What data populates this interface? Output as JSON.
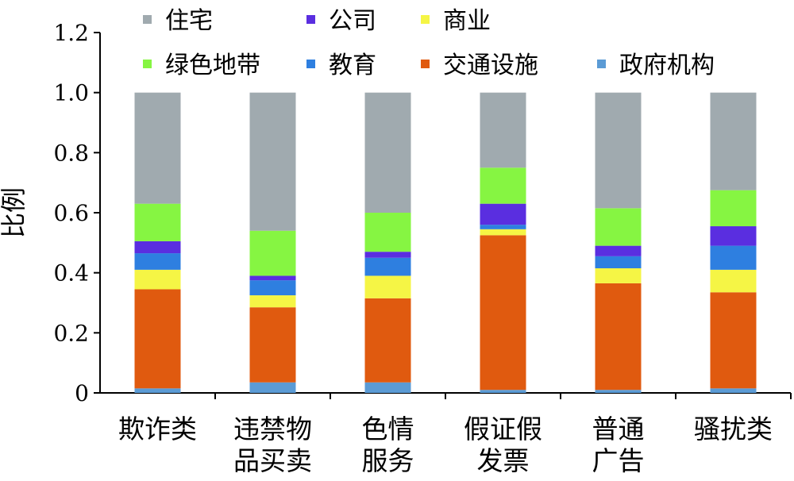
{
  "chart_data": {
    "type": "bar",
    "stacked": true,
    "categories": [
      [
        "欺诈类"
      ],
      [
        "违禁物",
        "品买卖"
      ],
      [
        "色情",
        "服务"
      ],
      [
        "假证假",
        "发票"
      ],
      [
        "普通",
        "广告"
      ],
      [
        "骚扰类"
      ]
    ],
    "series": [
      {
        "name": "政府机构",
        "color": "#5b9bd5",
        "values": [
          0.015,
          0.035,
          0.035,
          0.01,
          0.01,
          0.015
        ]
      },
      {
        "name": "交通设施",
        "color": "#e05a0f",
        "values": [
          0.33,
          0.25,
          0.28,
          0.515,
          0.355,
          0.32
        ]
      },
      {
        "name": "商业",
        "color": "#f5f545",
        "values": [
          0.065,
          0.04,
          0.075,
          0.02,
          0.05,
          0.075
        ]
      },
      {
        "name": "教育",
        "color": "#2e7fe0",
        "values": [
          0.055,
          0.05,
          0.06,
          0.015,
          0.04,
          0.08
        ]
      },
      {
        "name": "公司",
        "color": "#5a2ee0",
        "values": [
          0.04,
          0.015,
          0.02,
          0.07,
          0.035,
          0.065
        ]
      },
      {
        "name": "绿色地带",
        "color": "#86f542",
        "values": [
          0.125,
          0.15,
          0.13,
          0.12,
          0.125,
          0.12
        ]
      },
      {
        "name": "住宅",
        "color": "#a0aaaf",
        "values": [
          0.37,
          0.46,
          0.4,
          0.25,
          0.385,
          0.325
        ]
      }
    ],
    "legend_order": [
      "住宅",
      "公司",
      "商业",
      "绿色地带",
      "教育",
      "交通设施",
      "政府机构"
    ],
    "legend_position": "top",
    "ylabel": "比例",
    "xlabel": "",
    "ylim": [
      0,
      1.2
    ],
    "yticks": [
      "0",
      "0.2",
      "0.4",
      "0.6",
      "0.8",
      "1.0",
      "1.2"
    ],
    "grid": false
  }
}
